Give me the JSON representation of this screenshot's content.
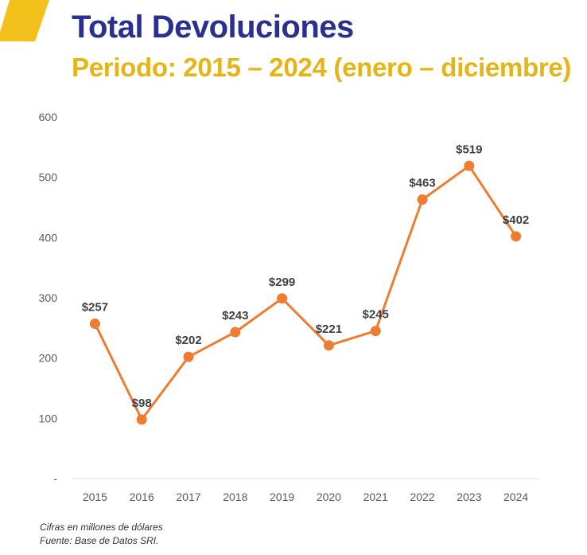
{
  "colors": {
    "title": "#2b2f8f",
    "subtitle": "#e7b418",
    "accent": "#f3c11b",
    "series": "#ee7d31",
    "axis_text": "#595959",
    "data_label": "#404040"
  },
  "header": {
    "title": "Total Devoluciones",
    "subtitle": "Periodo: 2015 – 2024 (enero – diciembre)"
  },
  "footer": {
    "units_note": "Cifras en millones de dólares",
    "source": "Fuente: Base de Datos SRI."
  },
  "chart_data": {
    "type": "line",
    "title": "Total Devoluciones",
    "xlabel": "",
    "ylabel": "",
    "categories": [
      "2015",
      "2016",
      "2017",
      "2018",
      "2019",
      "2020",
      "2021",
      "2022",
      "2023",
      "2024"
    ],
    "values": [
      257,
      98,
      202,
      243,
      299,
      221,
      245,
      463,
      519,
      402
    ],
    "data_labels": [
      "$257",
      "$98",
      "$202",
      "$243",
      "$299",
      "$221",
      "$245",
      "$463",
      "$519",
      "$402"
    ],
    "ylim": [
      0,
      600
    ],
    "yticks": [
      0,
      100,
      200,
      300,
      400,
      500,
      600
    ],
    "ytick_labels": [
      "-",
      "100",
      "200",
      "300",
      "400",
      "500",
      "600"
    ],
    "grid": false,
    "legend": "none"
  }
}
